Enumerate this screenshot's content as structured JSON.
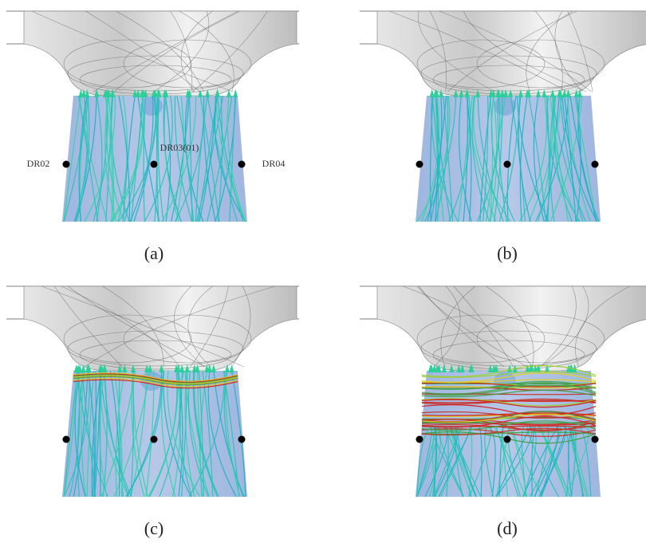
{
  "panels": [
    {
      "label": "(a)",
      "probes": [
        "DR02",
        "DR03(01)",
        "DR04"
      ]
    },
    {
      "label": "(b)"
    },
    {
      "label": "(c)"
    },
    {
      "label": "(d)"
    }
  ]
}
